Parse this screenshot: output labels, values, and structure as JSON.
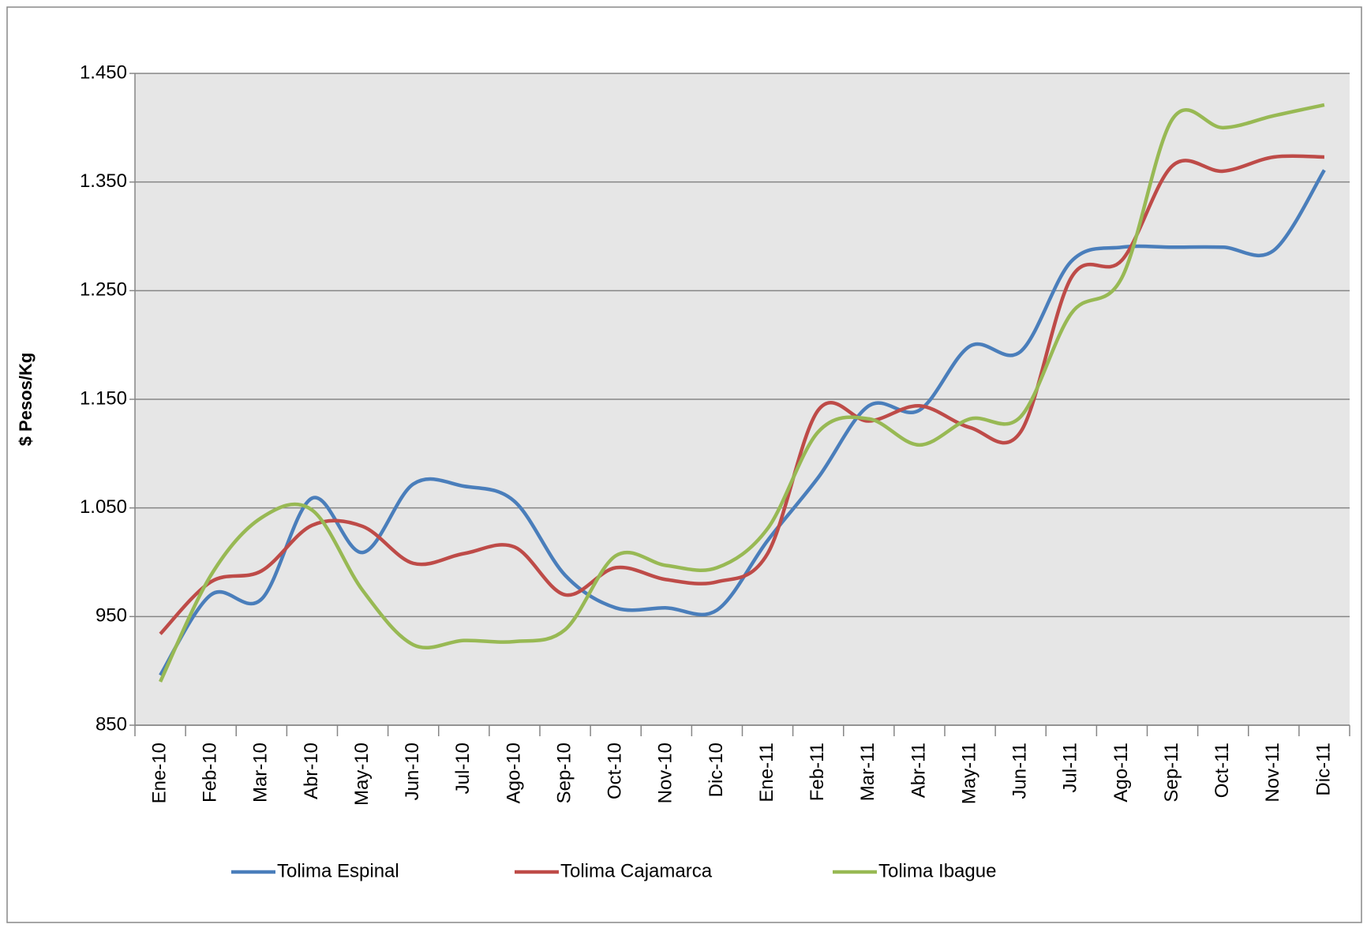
{
  "chart_data": {
    "type": "line",
    "y_label": "$ Pesos/Kg",
    "categories": [
      "Ene-10",
      "Feb-10",
      "Mar-10",
      "Abr-10",
      "May-10",
      "Jun-10",
      "Jul-10",
      "Ago-10",
      "Sep-10",
      "Oct-10",
      "Nov-10",
      "Dic-10",
      "Ene-11",
      "Feb-11",
      "Mar-11",
      "Abr-11",
      "May-11",
      "Jun-11",
      "Jul-11",
      "Ago-11",
      "Sep-11",
      "Oct-11",
      "Nov-11",
      "Dic-11"
    ],
    "series": [
      {
        "name": "Tolima Espinal",
        "color": "#4a7ebb",
        "values": [
          896,
          970,
          966,
          1059,
          1009,
          1072,
          1070,
          1056,
          988,
          958,
          958,
          956,
          1020,
          1078,
          1144,
          1140,
          1199,
          1194,
          1277,
          1290,
          1290,
          1290,
          1287,
          1361
        ]
      },
      {
        "name": "Tolima Cajamarca",
        "color": "#be4b48",
        "values": [
          934,
          982,
          992,
          1034,
          1033,
          999,
          1008,
          1014,
          970,
          995,
          984,
          982,
          1008,
          1140,
          1130,
          1144,
          1124,
          1120,
          1262,
          1278,
          1365,
          1360,
          1373,
          1373
        ]
      },
      {
        "name": "Tolima Ibague",
        "color": "#98b954",
        "values": [
          890,
          988,
          1041,
          1048,
          974,
          924,
          928,
          927,
          938,
          1006,
          997,
          995,
          1031,
          1120,
          1132,
          1108,
          1132,
          1134,
          1229,
          1262,
          1408,
          1400,
          1411,
          1421
        ]
      }
    ],
    "ylim": [
      850,
      1450
    ],
    "yticks": [
      850,
      950,
      {
        "value": 1050,
        "label": "1.050"
      },
      {
        "value": 1150,
        "label": "1.150"
      },
      {
        "value": 1250,
        "label": "1.250"
      },
      {
        "value": 1350,
        "label": "1.350"
      },
      {
        "value": 1450,
        "label": "1.450"
      }
    ],
    "grid": true,
    "legend": "bottom"
  }
}
